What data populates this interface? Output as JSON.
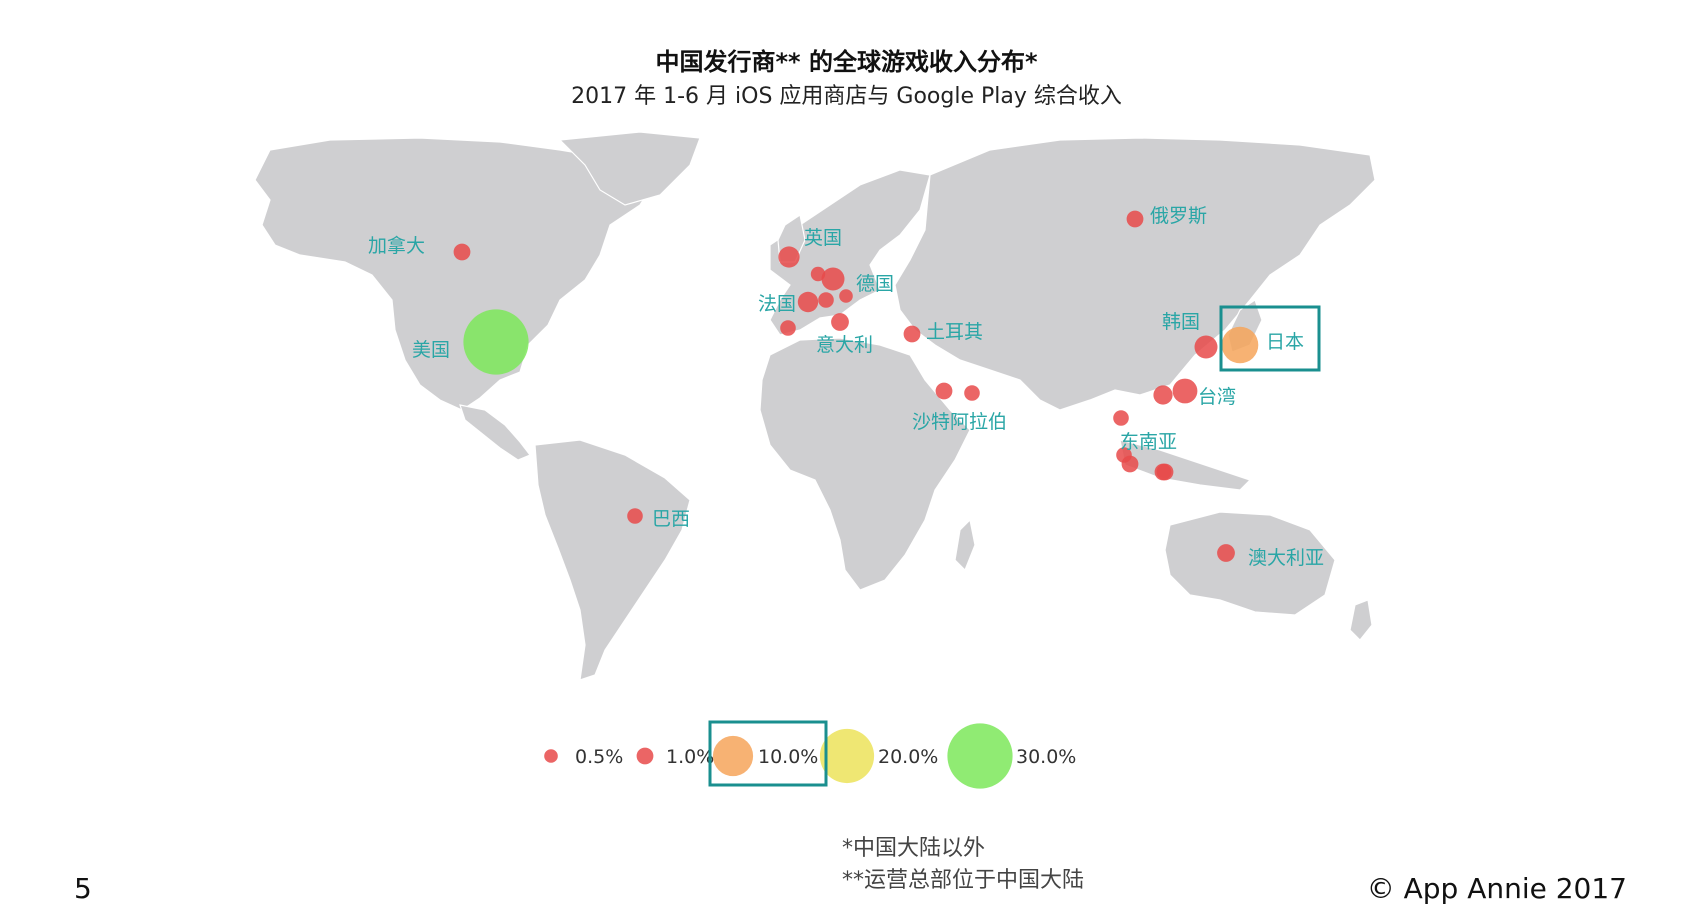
{
  "title": "中国发行商** 的全球游戏收入分布*",
  "subtitle": "2017 年 1-6 月 iOS 应用商店与 Google Play 综合收入",
  "colors": {
    "land": "#cfcfd1",
    "label": "#2aa6a6",
    "highlight_box": "#1a8f8f",
    "tier_0_5": "#e84a4a",
    "tier_1": "#e84a4a",
    "tier_10": "#f6a55a",
    "tier_20": "#ece35b",
    "tier_30": "#7de85b"
  },
  "regions": [
    {
      "id": "canada",
      "label": "加拿大",
      "share_pct": 1.0
    },
    {
      "id": "usa",
      "label": "美国",
      "share_pct": 30.0
    },
    {
      "id": "uk",
      "label": "英国",
      "share_pct": 2.0
    },
    {
      "id": "germany",
      "label": "德国",
      "share_pct": 2.5
    },
    {
      "id": "france",
      "label": "法国",
      "share_pct": 1.8
    },
    {
      "id": "italy",
      "label": "意大利",
      "share_pct": 1.2
    },
    {
      "id": "turkey",
      "label": "土耳其",
      "share_pct": 1.0
    },
    {
      "id": "russia",
      "label": "俄罗斯",
      "share_pct": 1.0
    },
    {
      "id": "saudi",
      "label": "沙特阿拉伯",
      "share_pct": 1.0
    },
    {
      "id": "korea",
      "label": "韩国",
      "share_pct": 2.5
    },
    {
      "id": "japan",
      "label": "日本",
      "share_pct": 8.0,
      "highlight": true
    },
    {
      "id": "taiwan",
      "label": "台湾",
      "share_pct": 3.0
    },
    {
      "id": "sea",
      "label": "东南亚",
      "share_pct": 0.8
    },
    {
      "id": "brazil",
      "label": "巴西",
      "share_pct": 0.8
    },
    {
      "id": "australia",
      "label": "澳大利亚",
      "share_pct": 1.2
    }
  ],
  "unlabeled_markers": [
    {
      "id": "netherlands",
      "share_pct": 0.6
    },
    {
      "id": "poland",
      "share_pct": 0.5
    },
    {
      "id": "switzerland",
      "share_pct": 0.8
    },
    {
      "id": "spain",
      "share_pct": 0.8
    },
    {
      "id": "uae",
      "share_pct": 0.8
    },
    {
      "id": "hongkong",
      "share_pct": 1.5
    },
    {
      "id": "thailand",
      "share_pct": 0.8
    },
    {
      "id": "malaysia",
      "share_pct": 1.0
    },
    {
      "id": "singapore",
      "share_pct": 1.0
    },
    {
      "id": "philippines",
      "share_pct": 1.0
    }
  ],
  "legend": [
    {
      "label": "0.5%",
      "value": 0.5,
      "tier": "tier_0_5"
    },
    {
      "label": "1.0%",
      "value": 1.0,
      "tier": "tier_1"
    },
    {
      "label": "10.0%",
      "value": 10.0,
      "tier": "tier_10",
      "highlight": true
    },
    {
      "label": "20.0%",
      "value": 20.0,
      "tier": "tier_20"
    },
    {
      "label": "30.0%",
      "value": 30.0,
      "tier": "tier_30"
    }
  ],
  "footnotes": [
    "*中国大陆以外",
    "**运营总部位于中国大陆"
  ],
  "page_number": "5",
  "copyright": "© App Annie 2017"
}
